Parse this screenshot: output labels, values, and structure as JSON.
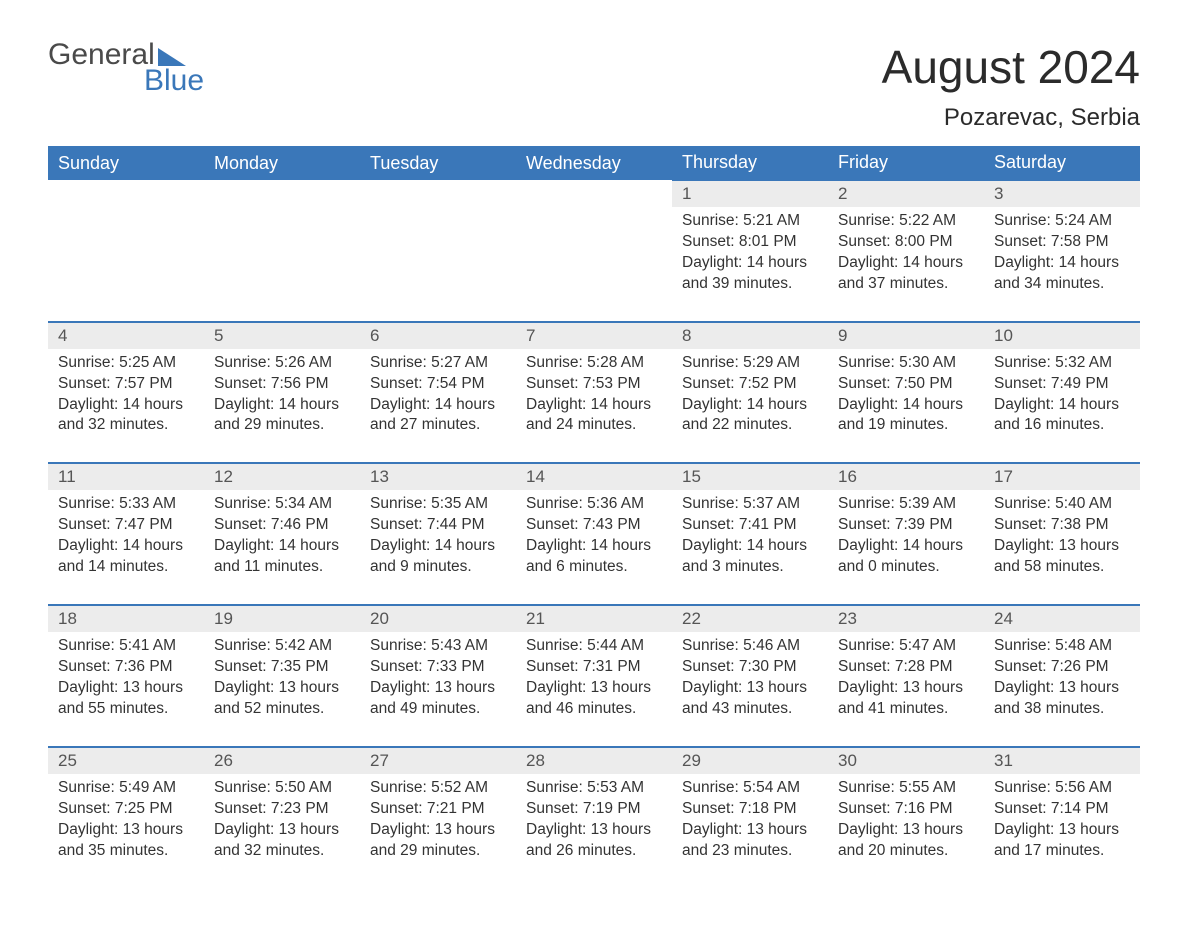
{
  "logo": {
    "word1": "General",
    "word2": "Blue"
  },
  "header": {
    "month_title": "August 2024",
    "location": "Pozarevac, Serbia"
  },
  "table": {
    "columns": [
      "Sunday",
      "Monday",
      "Tuesday",
      "Wednesday",
      "Thursday",
      "Friday",
      "Saturday"
    ],
    "header_bg": "#3a77b9",
    "header_fg": "#ffffff",
    "daynum_bg": "#ececec",
    "rule_color": "#3a77b9",
    "weeks": [
      [
        null,
        null,
        null,
        null,
        {
          "day": "1",
          "sunrise": "5:21 AM",
          "sunset": "8:01 PM",
          "dl_hours": "14",
          "dl_minutes": "39"
        },
        {
          "day": "2",
          "sunrise": "5:22 AM",
          "sunset": "8:00 PM",
          "dl_hours": "14",
          "dl_minutes": "37"
        },
        {
          "day": "3",
          "sunrise": "5:24 AM",
          "sunset": "7:58 PM",
          "dl_hours": "14",
          "dl_minutes": "34"
        }
      ],
      [
        {
          "day": "4",
          "sunrise": "5:25 AM",
          "sunset": "7:57 PM",
          "dl_hours": "14",
          "dl_minutes": "32"
        },
        {
          "day": "5",
          "sunrise": "5:26 AM",
          "sunset": "7:56 PM",
          "dl_hours": "14",
          "dl_minutes": "29"
        },
        {
          "day": "6",
          "sunrise": "5:27 AM",
          "sunset": "7:54 PM",
          "dl_hours": "14",
          "dl_minutes": "27"
        },
        {
          "day": "7",
          "sunrise": "5:28 AM",
          "sunset": "7:53 PM",
          "dl_hours": "14",
          "dl_minutes": "24"
        },
        {
          "day": "8",
          "sunrise": "5:29 AM",
          "sunset": "7:52 PM",
          "dl_hours": "14",
          "dl_minutes": "22"
        },
        {
          "day": "9",
          "sunrise": "5:30 AM",
          "sunset": "7:50 PM",
          "dl_hours": "14",
          "dl_minutes": "19"
        },
        {
          "day": "10",
          "sunrise": "5:32 AM",
          "sunset": "7:49 PM",
          "dl_hours": "14",
          "dl_minutes": "16"
        }
      ],
      [
        {
          "day": "11",
          "sunrise": "5:33 AM",
          "sunset": "7:47 PM",
          "dl_hours": "14",
          "dl_minutes": "14"
        },
        {
          "day": "12",
          "sunrise": "5:34 AM",
          "sunset": "7:46 PM",
          "dl_hours": "14",
          "dl_minutes": "11"
        },
        {
          "day": "13",
          "sunrise": "5:35 AM",
          "sunset": "7:44 PM",
          "dl_hours": "14",
          "dl_minutes": "9"
        },
        {
          "day": "14",
          "sunrise": "5:36 AM",
          "sunset": "7:43 PM",
          "dl_hours": "14",
          "dl_minutes": "6"
        },
        {
          "day": "15",
          "sunrise": "5:37 AM",
          "sunset": "7:41 PM",
          "dl_hours": "14",
          "dl_minutes": "3"
        },
        {
          "day": "16",
          "sunrise": "5:39 AM",
          "sunset": "7:39 PM",
          "dl_hours": "14",
          "dl_minutes": "0"
        },
        {
          "day": "17",
          "sunrise": "5:40 AM",
          "sunset": "7:38 PM",
          "dl_hours": "13",
          "dl_minutes": "58"
        }
      ],
      [
        {
          "day": "18",
          "sunrise": "5:41 AM",
          "sunset": "7:36 PM",
          "dl_hours": "13",
          "dl_minutes": "55"
        },
        {
          "day": "19",
          "sunrise": "5:42 AM",
          "sunset": "7:35 PM",
          "dl_hours": "13",
          "dl_minutes": "52"
        },
        {
          "day": "20",
          "sunrise": "5:43 AM",
          "sunset": "7:33 PM",
          "dl_hours": "13",
          "dl_minutes": "49"
        },
        {
          "day": "21",
          "sunrise": "5:44 AM",
          "sunset": "7:31 PM",
          "dl_hours": "13",
          "dl_minutes": "46"
        },
        {
          "day": "22",
          "sunrise": "5:46 AM",
          "sunset": "7:30 PM",
          "dl_hours": "13",
          "dl_minutes": "43"
        },
        {
          "day": "23",
          "sunrise": "5:47 AM",
          "sunset": "7:28 PM",
          "dl_hours": "13",
          "dl_minutes": "41"
        },
        {
          "day": "24",
          "sunrise": "5:48 AM",
          "sunset": "7:26 PM",
          "dl_hours": "13",
          "dl_minutes": "38"
        }
      ],
      [
        {
          "day": "25",
          "sunrise": "5:49 AM",
          "sunset": "7:25 PM",
          "dl_hours": "13",
          "dl_minutes": "35"
        },
        {
          "day": "26",
          "sunrise": "5:50 AM",
          "sunset": "7:23 PM",
          "dl_hours": "13",
          "dl_minutes": "32"
        },
        {
          "day": "27",
          "sunrise": "5:52 AM",
          "sunset": "7:21 PM",
          "dl_hours": "13",
          "dl_minutes": "29"
        },
        {
          "day": "28",
          "sunrise": "5:53 AM",
          "sunset": "7:19 PM",
          "dl_hours": "13",
          "dl_minutes": "26"
        },
        {
          "day": "29",
          "sunrise": "5:54 AM",
          "sunset": "7:18 PM",
          "dl_hours": "13",
          "dl_minutes": "23"
        },
        {
          "day": "30",
          "sunrise": "5:55 AM",
          "sunset": "7:16 PM",
          "dl_hours": "13",
          "dl_minutes": "20"
        },
        {
          "day": "31",
          "sunrise": "5:56 AM",
          "sunset": "7:14 PM",
          "dl_hours": "13",
          "dl_minutes": "17"
        }
      ]
    ],
    "labels": {
      "sunrise_prefix": "Sunrise: ",
      "sunset_prefix": "Sunset: ",
      "daylight_prefix": "Daylight: ",
      "hours_word": " hours",
      "and_word": "and ",
      "minutes_word": " minutes."
    }
  }
}
